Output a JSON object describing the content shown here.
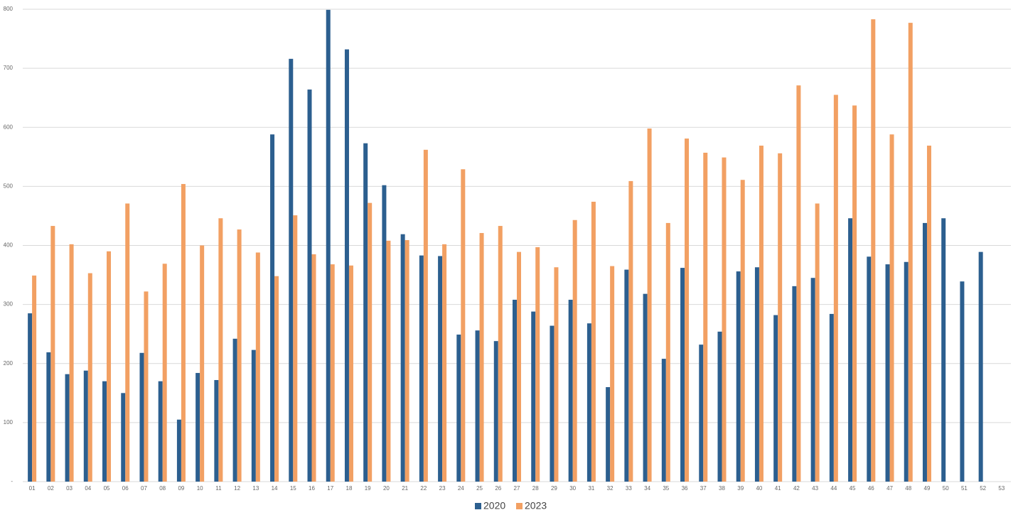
{
  "chart_data": {
    "type": "bar",
    "categories": [
      "01",
      "02",
      "03",
      "04",
      "05",
      "06",
      "07",
      "08",
      "09",
      "10",
      "11",
      "12",
      "13",
      "14",
      "15",
      "16",
      "17",
      "18",
      "19",
      "20",
      "21",
      "22",
      "23",
      "24",
      "25",
      "26",
      "27",
      "28",
      "29",
      "30",
      "31",
      "32",
      "33",
      "34",
      "35",
      "36",
      "37",
      "38",
      "39",
      "40",
      "41",
      "42",
      "43",
      "44",
      "45",
      "46",
      "47",
      "48",
      "49",
      "50",
      "51",
      "52",
      "53"
    ],
    "series": [
      {
        "name": "2020",
        "color": "#2c5f8f",
        "values": [
          285,
          219,
          182,
          188,
          170,
          150,
          218,
          170,
          105,
          184,
          172,
          242,
          223,
          588,
          716,
          664,
          799,
          732,
          573,
          502,
          419,
          383,
          382,
          249,
          256,
          238,
          308,
          288,
          264,
          308,
          268,
          160,
          359,
          318,
          208,
          362,
          232,
          254,
          356,
          363,
          282,
          331,
          345,
          284,
          446,
          381,
          368,
          372,
          438,
          446,
          339,
          389,
          null
        ]
      },
      {
        "name": "2023",
        "color": "#f2a063",
        "values": [
          349,
          433,
          402,
          353,
          390,
          471,
          322,
          369,
          504,
          400,
          446,
          427,
          388,
          348,
          451,
          385,
          368,
          366,
          472,
          408,
          409,
          562,
          402,
          529,
          421,
          433,
          389,
          397,
          363,
          443,
          474,
          365,
          509,
          598,
          438,
          581,
          557,
          549,
          511,
          569,
          556,
          671,
          471,
          655,
          637,
          783,
          588,
          777,
          569,
          null,
          null,
          null,
          null
        ]
      }
    ],
    "ylim": [
      0,
      800
    ],
    "yticks": [
      {
        "value": 0,
        "label": "-"
      },
      100,
      200,
      300,
      400,
      500,
      600,
      700,
      800
    ],
    "grid": true,
    "legend": "bottom"
  }
}
